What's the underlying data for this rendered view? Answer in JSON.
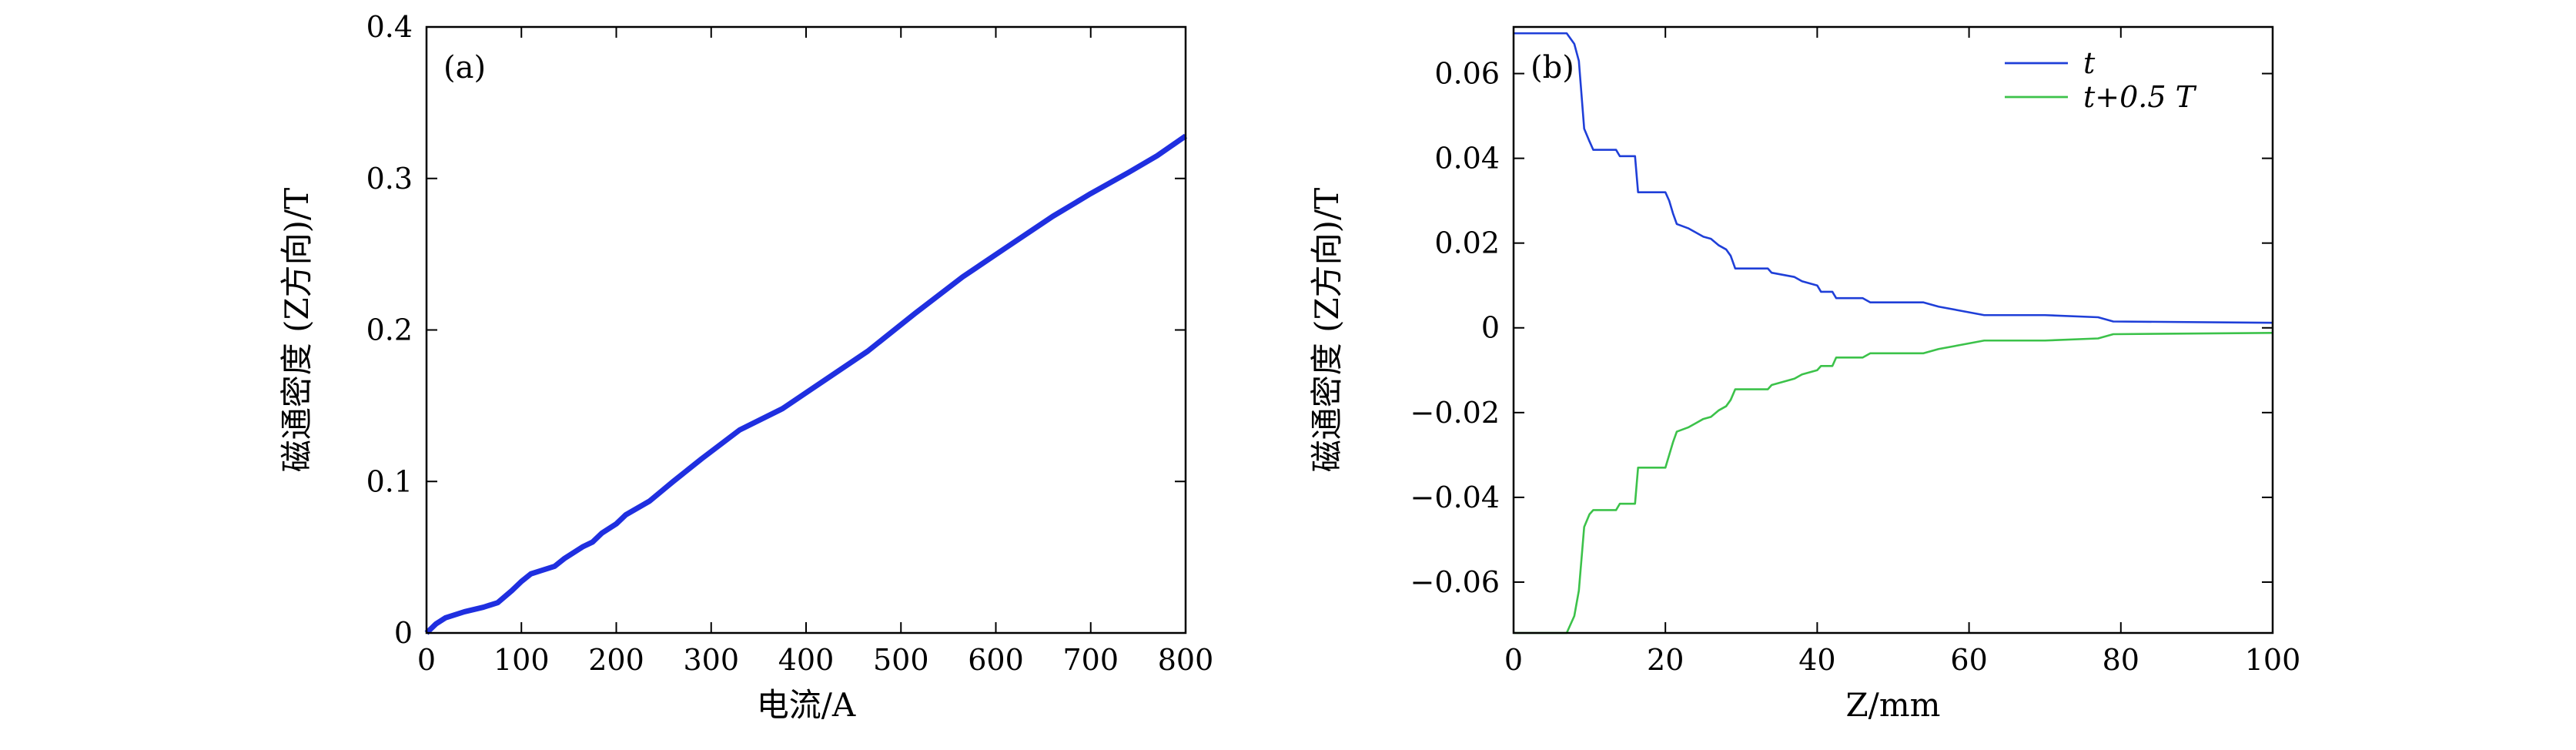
{
  "chart_data": [
    {
      "type": "line",
      "panel_label": "(a)",
      "xlabel": "电流/A",
      "ylabel": "磁通密度 (Z方向)/T",
      "xlim": [
        0,
        800
      ],
      "ylim": [
        0,
        0.4
      ],
      "xticks": [
        "0",
        "100",
        "200",
        "300",
        "400",
        "500",
        "600",
        "700",
        "800"
      ],
      "xtick_values": [
        0,
        100,
        200,
        300,
        400,
        500,
        600,
        700,
        800
      ],
      "yticks": [
        "0",
        "0.1",
        "0.2",
        "0.3",
        "0.4"
      ],
      "ytick_values": [
        0,
        0.1,
        0.2,
        0.3,
        0.4
      ],
      "grid": false,
      "series": [
        {
          "color": "#1f2fe0",
          "x": [
            0,
            5,
            10,
            20,
            40,
            60,
            75,
            90,
            100,
            110,
            120,
            135,
            145,
            155,
            165,
            175,
            185,
            200,
            210,
            235,
            260,
            290,
            330,
            375,
            420,
            465,
            515,
            565,
            610,
            660,
            700,
            740,
            770,
            800
          ],
          "y": [
            0,
            0.003,
            0.006,
            0.01,
            0.014,
            0.017,
            0.02,
            0.028,
            0.034,
            0.039,
            0.041,
            0.044,
            0.049,
            0.053,
            0.057,
            0.06,
            0.066,
            0.072,
            0.078,
            0.087,
            0.1,
            0.115,
            0.134,
            0.148,
            0.167,
            0.186,
            0.211,
            0.235,
            0.254,
            0.275,
            0.29,
            0.304,
            0.315,
            0.328
          ]
        }
      ]
    },
    {
      "type": "line",
      "panel_label": "(b)",
      "xlabel": "Z/mm",
      "ylabel": "磁通密度 (Z方向)/T",
      "xlim": [
        0,
        100
      ],
      "ylim": [
        -0.072,
        0.071
      ],
      "xticks": [
        "0",
        "20",
        "40",
        "60",
        "80",
        "100"
      ],
      "xtick_values": [
        0,
        20,
        40,
        60,
        80,
        100
      ],
      "yticks": [
        "0.06",
        "0.04",
        "0.02",
        "0",
        "−0.02",
        "−0.04",
        "−0.06"
      ],
      "ytick_values": [
        0.06,
        0.04,
        0.02,
        0,
        -0.02,
        -0.04,
        -0.06
      ],
      "grid": false,
      "legend_position": "top-right",
      "series": [
        {
          "name": "t",
          "color": "#1f3fd8",
          "x": [
            0,
            7,
            8,
            8.6,
            9.3,
            10,
            10.5,
            13.5,
            14,
            16,
            16.4,
            20,
            20.5,
            21,
            21.5,
            23,
            24,
            25,
            26,
            27,
            28,
            28.6,
            29.2,
            33.5,
            34,
            37,
            38,
            40,
            40.5,
            42,
            42.5,
            46,
            47,
            54,
            56,
            59,
            62,
            70,
            77,
            78,
            79,
            100
          ],
          "y": [
            0.0695,
            0.0695,
            0.067,
            0.063,
            0.047,
            0.044,
            0.042,
            0.042,
            0.0405,
            0.0405,
            0.032,
            0.032,
            0.03,
            0.027,
            0.0245,
            0.0235,
            0.0225,
            0.0215,
            0.021,
            0.0195,
            0.0185,
            0.017,
            0.014,
            0.014,
            0.013,
            0.012,
            0.011,
            0.01,
            0.0085,
            0.0085,
            0.007,
            0.007,
            0.006,
            0.006,
            0.005,
            0.004,
            0.003,
            0.003,
            0.0025,
            0.002,
            0.0015,
            0.0012
          ]
        },
        {
          "name": "t+0.5 T",
          "color": "#3cc24a",
          "x": [
            0,
            7,
            8,
            8.6,
            9.3,
            10,
            10.5,
            13.5,
            14,
            16,
            16.4,
            20,
            20.5,
            21,
            21.5,
            23,
            24,
            25,
            26,
            27,
            28,
            28.6,
            29.2,
            33.5,
            34,
            37,
            38,
            40,
            40.5,
            42,
            42.5,
            46,
            47,
            54,
            56,
            59,
            62,
            70,
            77,
            78,
            79,
            100
          ],
          "y": [
            -0.072,
            -0.072,
            -0.068,
            -0.062,
            -0.047,
            -0.044,
            -0.043,
            -0.043,
            -0.0415,
            -0.0415,
            -0.033,
            -0.033,
            -0.03,
            -0.027,
            -0.0245,
            -0.0235,
            -0.0225,
            -0.0215,
            -0.021,
            -0.0195,
            -0.0185,
            -0.017,
            -0.0145,
            -0.0145,
            -0.0135,
            -0.012,
            -0.011,
            -0.01,
            -0.009,
            -0.009,
            -0.007,
            -0.007,
            -0.006,
            -0.006,
            -0.005,
            -0.004,
            -0.003,
            -0.003,
            -0.0025,
            -0.002,
            -0.0015,
            -0.0012
          ]
        }
      ]
    }
  ]
}
